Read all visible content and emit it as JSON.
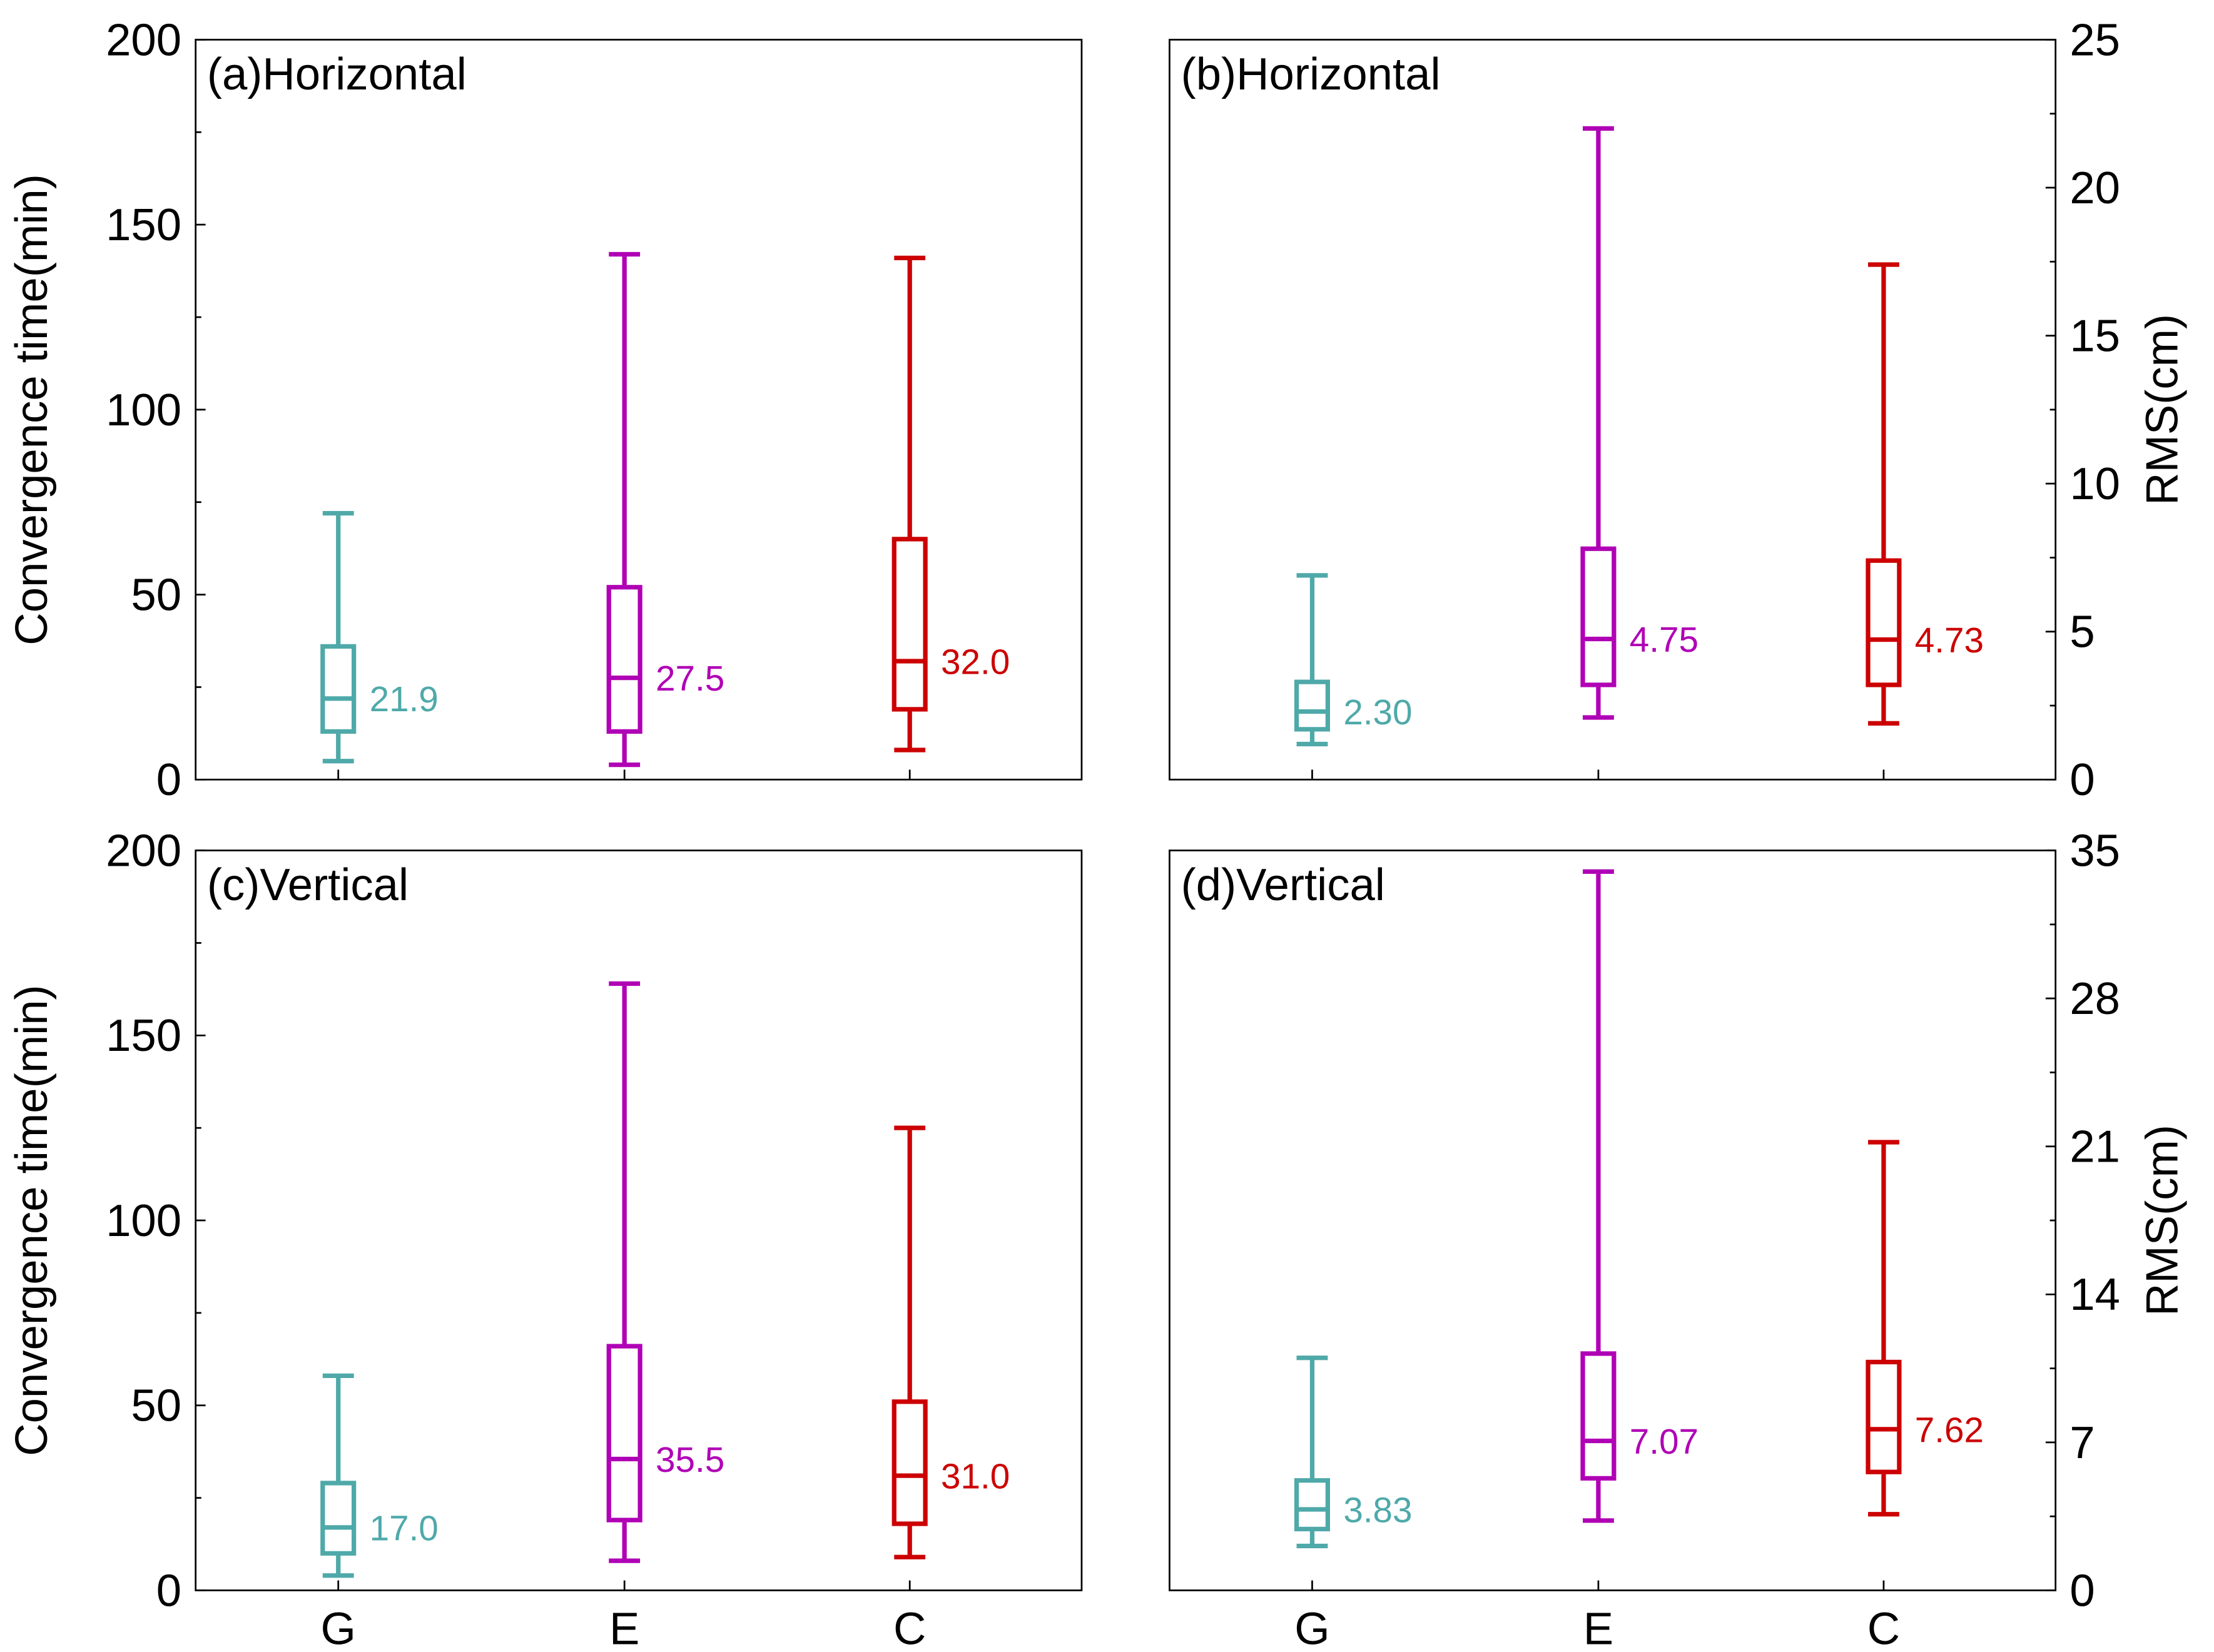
{
  "chart_data": [
    {
      "type": "box",
      "panel_label": "(a)Horizontal",
      "ylabel": "Convergence time(min)",
      "y_axis_side": "left",
      "ylim": [
        0,
        200
      ],
      "yticks": [
        0,
        50,
        100,
        150,
        200
      ],
      "ytick_labels": [
        "0",
        "50",
        "100",
        "150",
        "200"
      ],
      "categories": [
        "G",
        "E",
        "C"
      ],
      "show_xtick_labels": false,
      "series": [
        {
          "category": "G",
          "color": "#4fa9a9",
          "min": 5,
          "q1": 13,
          "median": 21.9,
          "q3": 36,
          "max": 72,
          "median_label": "21.9"
        },
        {
          "category": "E",
          "color": "#b000b5",
          "min": 4,
          "q1": 13,
          "median": 27.5,
          "q3": 52,
          "max": 142,
          "median_label": "27.5"
        },
        {
          "category": "C",
          "color": "#cc0000",
          "min": 8,
          "q1": 19,
          "median": 32.0,
          "q3": 65,
          "max": 141,
          "median_label": "32.0"
        }
      ]
    },
    {
      "type": "box",
      "panel_label": "(b)Horizontal",
      "ylabel": "RMS(cm)",
      "y_axis_side": "right",
      "ylim": [
        0,
        25
      ],
      "yticks": [
        0,
        5,
        10,
        15,
        20,
        25
      ],
      "ytick_labels": [
        "0",
        "5",
        "10",
        "15",
        "20",
        "25"
      ],
      "categories": [
        "G",
        "E",
        "C"
      ],
      "show_xtick_labels": false,
      "series": [
        {
          "category": "G",
          "color": "#4fa9a9",
          "min": 1.2,
          "q1": 1.7,
          "median": 2.3,
          "q3": 3.3,
          "max": 6.9,
          "median_label": "2.30"
        },
        {
          "category": "E",
          "color": "#b000b5",
          "min": 2.1,
          "q1": 3.2,
          "median": 4.75,
          "q3": 7.8,
          "max": 22.0,
          "median_label": "4.75"
        },
        {
          "category": "C",
          "color": "#cc0000",
          "min": 1.9,
          "q1": 3.2,
          "median": 4.73,
          "q3": 7.4,
          "max": 17.4,
          "median_label": "4.73"
        }
      ]
    },
    {
      "type": "box",
      "panel_label": "(c)Vertical",
      "ylabel": "Convergence time(min)",
      "y_axis_side": "left",
      "ylim": [
        0,
        200
      ],
      "yticks": [
        0,
        50,
        100,
        150,
        200
      ],
      "ytick_labels": [
        "0",
        "50",
        "100",
        "150",
        "200"
      ],
      "categories": [
        "G",
        "E",
        "C"
      ],
      "show_xtick_labels": true,
      "series": [
        {
          "category": "G",
          "color": "#4fa9a9",
          "min": 4,
          "q1": 10,
          "median": 17.0,
          "q3": 29,
          "max": 58,
          "median_label": "17.0"
        },
        {
          "category": "E",
          "color": "#b000b5",
          "min": 8,
          "q1": 19,
          "median": 35.5,
          "q3": 66,
          "max": 164,
          "median_label": "35.5"
        },
        {
          "category": "C",
          "color": "#cc0000",
          "min": 9,
          "q1": 18,
          "median": 31.0,
          "q3": 51,
          "max": 125,
          "median_label": "31.0"
        }
      ]
    },
    {
      "type": "box",
      "panel_label": "(d)Vertical",
      "ylabel": "RMS(cm)",
      "y_axis_side": "right",
      "ylim": [
        0,
        35
      ],
      "yticks": [
        0,
        7,
        14,
        21,
        28,
        35
      ],
      "ytick_labels": [
        "0",
        "7",
        "14",
        "21",
        "28",
        "35"
      ],
      "categories": [
        "G",
        "E",
        "C"
      ],
      "show_xtick_labels": true,
      "series": [
        {
          "category": "G",
          "color": "#4fa9a9",
          "min": 2.1,
          "q1": 2.9,
          "median": 3.83,
          "q3": 5.2,
          "max": 11.0,
          "median_label": "3.83"
        },
        {
          "category": "E",
          "color": "#b000b5",
          "min": 3.3,
          "q1": 5.3,
          "median": 7.07,
          "q3": 11.2,
          "max": 34.0,
          "median_label": "7.07"
        },
        {
          "category": "C",
          "color": "#cc0000",
          "min": 3.6,
          "q1": 5.6,
          "median": 7.62,
          "q3": 10.8,
          "max": 21.2,
          "median_label": "7.62"
        }
      ]
    }
  ]
}
